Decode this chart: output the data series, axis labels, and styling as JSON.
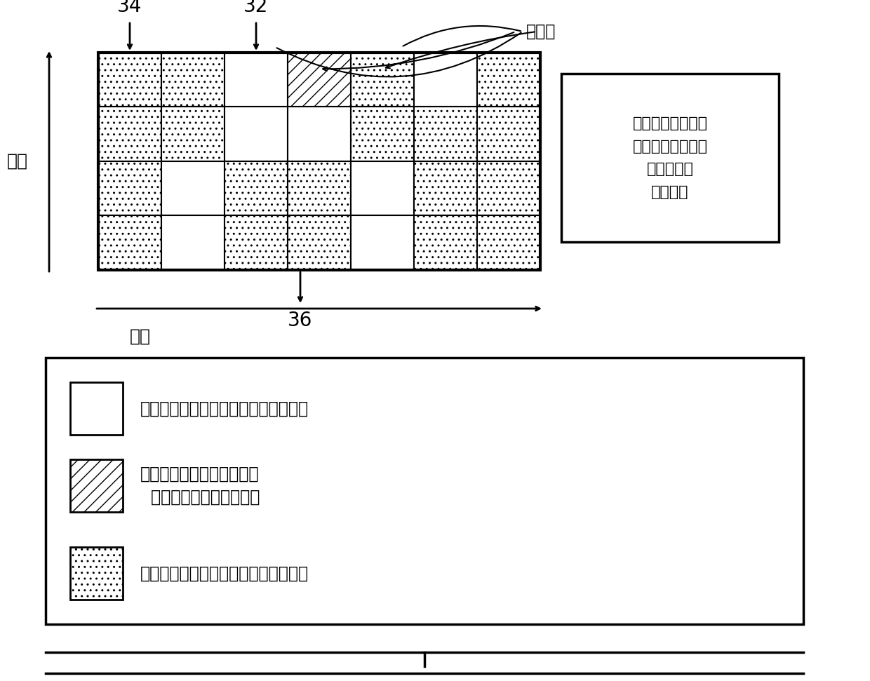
{
  "grid_cols": 7,
  "grid_rows": 4,
  "label_34": "34",
  "label_32": "32",
  "label_36": "36",
  "label_resource_block": "资源块",
  "ylabel": "频率",
  "xlabel": "时间",
  "side_box_text": "在同一干扰群组内\n没有频率时间空间\n中的上行和\n下行重叠",
  "legend_text1": "用于上行（发送）的块，表示为上行块",
  "legend_text2": "保护时间（为了解决下行和\n  上行定时的任何不对齐）",
  "legend_text3": "用于下行（接收）的块，表示为下行块",
  "bg_color": "#ffffff",
  "cell_pattern": [
    [
      0,
      0,
      1,
      2,
      0,
      1,
      0
    ],
    [
      0,
      0,
      1,
      1,
      0,
      0,
      0
    ],
    [
      0,
      1,
      0,
      0,
      1,
      0,
      0
    ],
    [
      0,
      1,
      0,
      0,
      1,
      0,
      0
    ]
  ]
}
